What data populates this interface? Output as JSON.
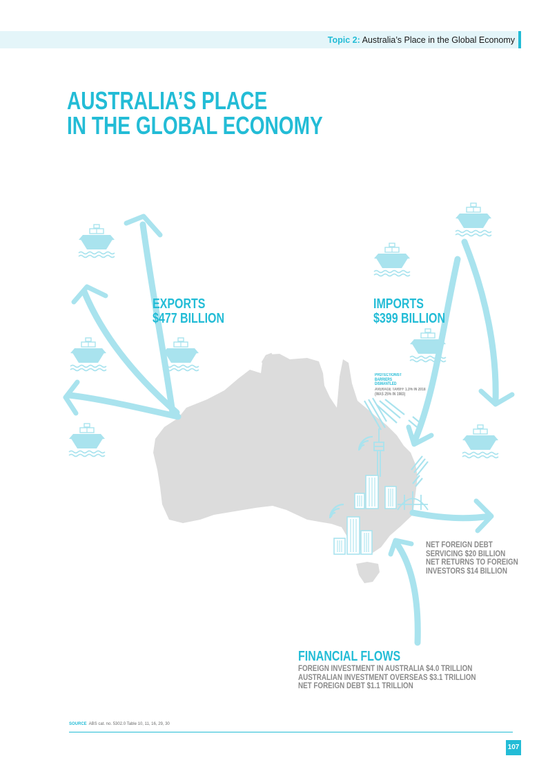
{
  "header": {
    "topic_label": "Topic 2:",
    "topic_title": "Australia’s Place in the Global Economy"
  },
  "title": {
    "line1": "AUSTRALIA’S PLACE",
    "line2": "IN THE GLOBAL ECONOMY"
  },
  "exports": {
    "line1": "EXPORTS",
    "line2": "$477 BILLION"
  },
  "imports": {
    "line1": "IMPORTS",
    "line2": "$399 BILLION"
  },
  "protectionism": {
    "heading": [
      "PROTECTIONIST",
      "BARRIERS",
      "DISMANTLED"
    ],
    "detail": [
      "AVERAGE TARIFF 1.3% IN 2018",
      "(WAS 25% IN 1983)"
    ]
  },
  "net_foreign_debt": {
    "lines": [
      "NET FOREIGN DEBT",
      "SERVICING $20 BILLION",
      "NET RETURNS TO FOREIGN",
      "INVESTORS $14 BILLION"
    ]
  },
  "financial_flows": {
    "heading": "FINANCIAL FLOWS",
    "lines": [
      "FOREIGN INVESTMENT IN AUSTRALIA $4.0 TRILLION",
      "AUSTRALIAN INVESTMENT OVERSEAS $3.1 TRILLION",
      "NET FOREIGN DEBT $1.1 TRILLION"
    ]
  },
  "source": {
    "label": "SOURCE",
    "text": "ABS cat. no. 5302.0  Table 10, 11, 16, 29, 30"
  },
  "page_number": "107",
  "icons": [
    "ship-icon",
    "skyscraper-icon",
    "wifi-icon",
    "harbour-bridge-icon",
    "tower-icon",
    "australia-map"
  ],
  "colors": {
    "accent": "#23bcd6",
    "light_accent": "#a9e3ee",
    "map_gray": "#dcdcdc",
    "text_gray": "#8a8a8a"
  }
}
